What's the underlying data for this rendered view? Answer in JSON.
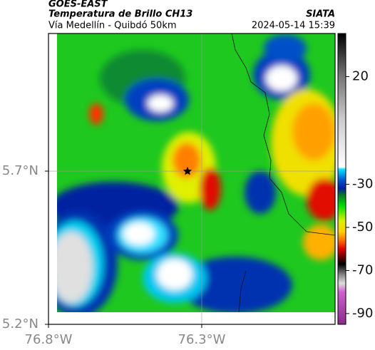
{
  "header": {
    "source": "GOES-EAST",
    "title": "Temperatura de Brillo CH13",
    "subtitle": "Vía Medellín - Quibdó 50km",
    "org": "SIATA",
    "datetime": "2024-05-14 15:39"
  },
  "map": {
    "xlim": [
      -76.8,
      -75.865
    ],
    "ylim": [
      5.2,
      6.149
    ],
    "xticks": [
      {
        "value": -76.8,
        "label": "76.8°W"
      },
      {
        "value": -76.3,
        "label": "76.3°W"
      }
    ],
    "yticks": [
      {
        "value": 5.2,
        "label": "5.2°N"
      },
      {
        "value": 5.7,
        "label": "5.7°N"
      }
    ],
    "grid": true
  },
  "colorbar": {
    "lim": [
      40,
      -95
    ],
    "ticks": [
      20,
      -30,
      -50,
      -70,
      -90
    ]
  }
}
